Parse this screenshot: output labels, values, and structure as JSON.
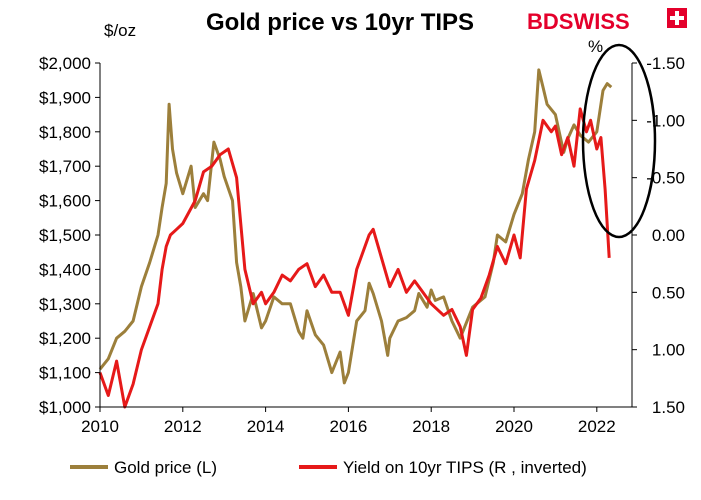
{
  "chart_data": {
    "type": "line",
    "title": "Gold price vs 10yr TIPS",
    "left_axis": {
      "unit": "$/oz",
      "ylim": [
        1000,
        2000
      ],
      "ticks": [
        "$1,000",
        "$1,100",
        "$1,200",
        "$1,300",
        "$1,400",
        "$1,500",
        "$1,600",
        "$1,700",
        "$1,800",
        "$1,900",
        "$2,000"
      ],
      "tick_values": [
        1000,
        1100,
        1200,
        1300,
        1400,
        1500,
        1600,
        1700,
        1800,
        1900,
        2000
      ]
    },
    "right_axis": {
      "unit": "%",
      "inverted": true,
      "ylim": [
        -1.5,
        1.5
      ],
      "ticks": [
        "-1.50",
        "-1.00",
        "-0.50",
        "0.00",
        "0.50",
        "1.00",
        "1.50"
      ],
      "tick_values": [
        -1.5,
        -1.0,
        -0.5,
        0.0,
        0.5,
        1.0,
        1.5
      ]
    },
    "x_axis": {
      "xlim": [
        2010,
        2022.85
      ],
      "ticks": [
        "2010",
        "2012",
        "2014",
        "2016",
        "2018",
        "2020",
        "2022"
      ],
      "tick_values": [
        2010,
        2012,
        2014,
        2016,
        2018,
        2020,
        2022
      ]
    },
    "legend_position": "bottom",
    "annotation": "ellipse around 2021-2022",
    "series": [
      {
        "name": "Gold price (L)",
        "axis": "left",
        "color": "#9c7f3b",
        "x": [
          2010.0,
          2010.2,
          2010.4,
          2010.6,
          2010.8,
          2011.0,
          2011.2,
          2011.4,
          2011.5,
          2011.6,
          2011.67,
          2011.75,
          2011.85,
          2012.0,
          2012.2,
          2012.3,
          2012.5,
          2012.6,
          2012.75,
          2012.9,
          2013.0,
          2013.2,
          2013.3,
          2013.4,
          2013.5,
          2013.7,
          2013.9,
          2014.0,
          2014.2,
          2014.4,
          2014.6,
          2014.8,
          2014.9,
          2015.0,
          2015.2,
          2015.4,
          2015.6,
          2015.8,
          2015.9,
          2016.0,
          2016.2,
          2016.4,
          2016.5,
          2016.6,
          2016.8,
          2016.95,
          2017.0,
          2017.2,
          2017.4,
          2017.6,
          2017.7,
          2017.9,
          2018.0,
          2018.1,
          2018.3,
          2018.5,
          2018.7,
          2018.8,
          2019.0,
          2019.3,
          2019.5,
          2019.6,
          2019.8,
          2020.0,
          2020.2,
          2020.35,
          2020.5,
          2020.6,
          2020.7,
          2020.8,
          2021.0,
          2021.2,
          2021.3,
          2021.45,
          2021.6,
          2021.8,
          2022.0,
          2022.15,
          2022.25,
          2022.35
        ],
        "y": [
          1110,
          1140,
          1200,
          1220,
          1250,
          1350,
          1420,
          1500,
          1580,
          1650,
          1880,
          1750,
          1680,
          1620,
          1700,
          1580,
          1620,
          1600,
          1770,
          1720,
          1670,
          1600,
          1420,
          1350,
          1250,
          1330,
          1230,
          1250,
          1320,
          1300,
          1300,
          1220,
          1200,
          1280,
          1210,
          1180,
          1100,
          1160,
          1070,
          1100,
          1250,
          1280,
          1360,
          1330,
          1250,
          1150,
          1200,
          1250,
          1260,
          1280,
          1330,
          1290,
          1340,
          1310,
          1320,
          1250,
          1200,
          1230,
          1290,
          1320,
          1420,
          1500,
          1480,
          1560,
          1620,
          1720,
          1800,
          1980,
          1930,
          1880,
          1850,
          1740,
          1780,
          1820,
          1790,
          1770,
          1800,
          1920,
          1940,
          1930
        ]
      },
      {
        "name": "Yield on 10yr TIPS (R , inverted)",
        "axis": "right",
        "color": "#e61919",
        "x": [
          2010.0,
          2010.2,
          2010.4,
          2010.6,
          2010.8,
          2011.0,
          2011.2,
          2011.4,
          2011.5,
          2011.6,
          2011.7,
          2011.85,
          2012.0,
          2012.3,
          2012.5,
          2012.7,
          2012.9,
          2013.1,
          2013.3,
          2013.5,
          2013.7,
          2013.9,
          2014.0,
          2014.2,
          2014.4,
          2014.6,
          2014.8,
          2015.0,
          2015.2,
          2015.4,
          2015.6,
          2015.8,
          2016.0,
          2016.2,
          2016.5,
          2016.6,
          2016.8,
          2017.0,
          2017.2,
          2017.4,
          2017.6,
          2017.8,
          2018.0,
          2018.3,
          2018.5,
          2018.7,
          2018.85,
          2019.0,
          2019.2,
          2019.4,
          2019.6,
          2019.8,
          2020.0,
          2020.15,
          2020.3,
          2020.5,
          2020.7,
          2020.9,
          2021.0,
          2021.15,
          2021.3,
          2021.45,
          2021.6,
          2021.75,
          2021.85,
          2022.0,
          2022.1,
          2022.2,
          2022.3
        ],
        "y": [
          1.2,
          1.4,
          1.1,
          1.5,
          1.3,
          1.0,
          0.8,
          0.6,
          0.3,
          0.1,
          0.0,
          -0.05,
          -0.1,
          -0.3,
          -0.55,
          -0.6,
          -0.7,
          -0.75,
          -0.5,
          0.3,
          0.6,
          0.5,
          0.6,
          0.5,
          0.35,
          0.4,
          0.3,
          0.25,
          0.45,
          0.35,
          0.5,
          0.5,
          0.7,
          0.3,
          0.0,
          -0.05,
          0.2,
          0.45,
          0.3,
          0.5,
          0.4,
          0.5,
          0.6,
          0.7,
          0.65,
          0.8,
          1.05,
          0.65,
          0.55,
          0.35,
          0.1,
          0.25,
          0.0,
          0.2,
          -0.4,
          -0.65,
          -1.0,
          -0.9,
          -0.95,
          -0.7,
          -0.85,
          -0.6,
          -1.1,
          -0.9,
          -1.0,
          -0.75,
          -0.85,
          -0.4,
          0.2
        ]
      }
    ]
  },
  "logo": {
    "text": "BDSWISS"
  },
  "colors": {
    "gold": "#9c7f3b",
    "tips": "#e61919",
    "logo": "#e4002b"
  }
}
